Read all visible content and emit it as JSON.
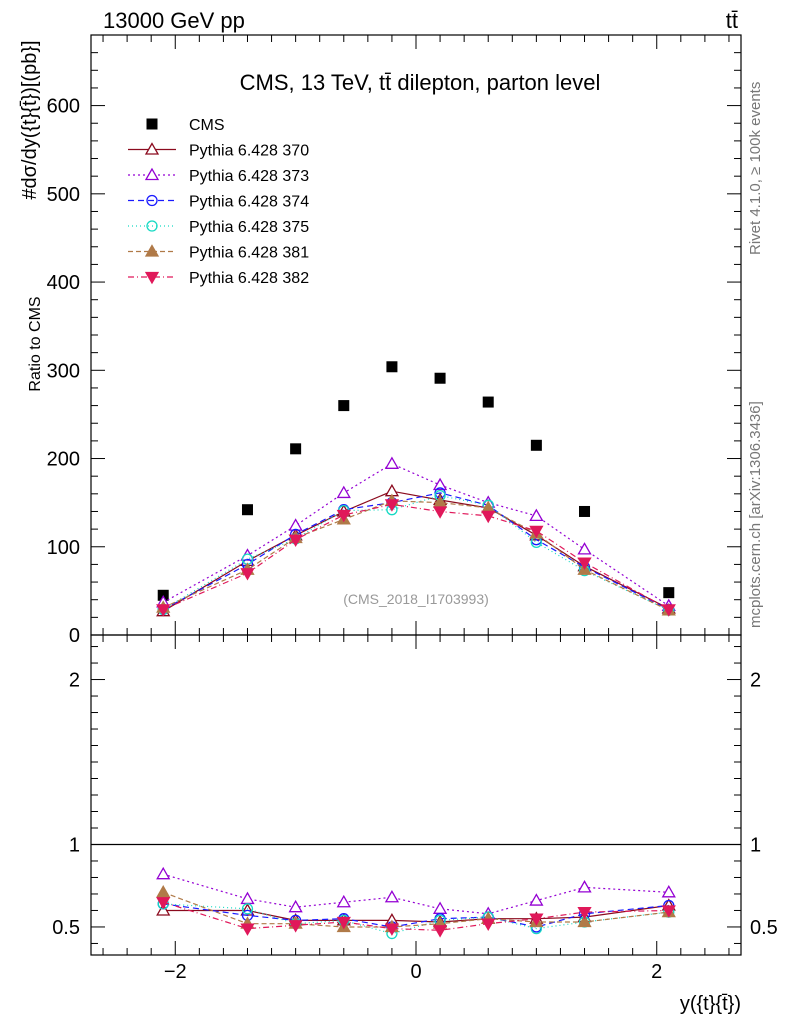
{
  "header": {
    "energy_label": "13000 GeV pp",
    "process_label": "tt̄"
  },
  "side_labels": {
    "rivet": "Rivet 4.1.0, ≥ 100k events",
    "mcplots": "mcplots.cern.ch [arXiv:1306.3436]"
  },
  "analysis_id": "(CMS_2018_I1703993)",
  "colors": {
    "CMS": "#000000",
    "p370": "#8b0a1e",
    "p373": "#9400d3",
    "p374": "#1a1aff",
    "p375": "#15d9c3",
    "p381": "#b07a48",
    "p382": "#e0185a"
  },
  "chart_data": [
    {
      "type": "scatter",
      "title": "CMS, 13 TeV, tt̄ dilepton, parton level",
      "ylabel": "#dσ/dy({t}{t̄})[(pb}]",
      "xlabel": "",
      "xlim": [
        -2.7,
        2.7
      ],
      "ylim": [
        0,
        680
      ],
      "yticks": [
        0,
        100,
        200,
        300,
        400,
        500,
        600
      ],
      "x": [
        -2.1,
        -1.4,
        -1.0,
        -0.6,
        -0.2,
        0.2,
        0.6,
        1.0,
        1.4,
        2.1
      ],
      "series": [
        {
          "name": "CMS",
          "key": "CMS",
          "marker": "square",
          "dash": "",
          "values": [
            45,
            142,
            211,
            260,
            304,
            291,
            264,
            215,
            140,
            48
          ]
        },
        {
          "name": "Pythia 6.428 370",
          "key": "p370",
          "marker": "triangle-open",
          "dash": "",
          "values": [
            27,
            84,
            113,
            140,
            163,
            153,
            144,
            113,
            78,
            30
          ]
        },
        {
          "name": "Pythia 6.428 373",
          "key": "p373",
          "marker": "triangle-open",
          "dash": "2,3",
          "values": [
            37,
            90,
            124,
            161,
            194,
            170,
            150,
            135,
            97,
            33
          ]
        },
        {
          "name": "Pythia 6.428 374",
          "key": "p374",
          "marker": "circle-open",
          "dash": "6,4",
          "values": [
            29,
            80,
            114,
            142,
            150,
            161,
            147,
            108,
            77,
            29
          ]
        },
        {
          "name": "Pythia 6.428 375",
          "key": "p375",
          "marker": "circle-open",
          "dash": "1,3",
          "values": [
            29,
            86,
            109,
            141,
            142,
            158,
            147,
            105,
            73,
            28
          ]
        },
        {
          "name": "Pythia 6.428 381",
          "key": "p381",
          "marker": "triangle",
          "dash": "5,3",
          "values": [
            31,
            74,
            110,
            131,
            152,
            150,
            144,
            115,
            74,
            28
          ]
        },
        {
          "name": "Pythia 6.428 382",
          "key": "p382",
          "marker": "triangle-down",
          "dash": "6,3,1,3",
          "values": [
            29,
            70,
            108,
            136,
            148,
            140,
            135,
            118,
            82,
            29
          ]
        }
      ]
    },
    {
      "type": "scatter",
      "title": "",
      "ylabel": "Ratio to CMS",
      "xlabel": "y({t}{t̄})",
      "xlim": [
        -2.7,
        2.7
      ],
      "ylim": [
        0.33,
        2.27
      ],
      "yticks": [
        0.5,
        1,
        2
      ],
      "xticks": [
        -2,
        0,
        2
      ],
      "x": [
        -2.1,
        -1.4,
        -1.0,
        -0.6,
        -0.2,
        0.2,
        0.6,
        1.0,
        1.4,
        2.1
      ],
      "series": [
        {
          "name": "Pythia 6.428 370",
          "key": "p370",
          "marker": "triangle-open",
          "dash": "",
          "values": [
            0.6,
            0.6,
            0.54,
            0.54,
            0.54,
            0.53,
            0.55,
            0.55,
            0.56,
            0.63
          ]
        },
        {
          "name": "Pythia 6.428 373",
          "key": "p373",
          "marker": "triangle-open",
          "dash": "2,3",
          "values": [
            0.82,
            0.67,
            0.62,
            0.65,
            0.68,
            0.61,
            0.58,
            0.66,
            0.74,
            0.71
          ]
        },
        {
          "name": "Pythia 6.428 374",
          "key": "p374",
          "marker": "circle-open",
          "dash": "6,4",
          "values": [
            0.64,
            0.57,
            0.54,
            0.55,
            0.5,
            0.55,
            0.56,
            0.5,
            0.58,
            0.63
          ]
        },
        {
          "name": "Pythia 6.428 375",
          "key": "p375",
          "marker": "circle-open",
          "dash": "1,3",
          "values": [
            0.64,
            0.61,
            0.52,
            0.54,
            0.46,
            0.54,
            0.56,
            0.49,
            0.53,
            0.59
          ]
        },
        {
          "name": "Pythia 6.428 381",
          "key": "p381",
          "marker": "triangle",
          "dash": "5,3",
          "values": [
            0.71,
            0.52,
            0.52,
            0.5,
            0.5,
            0.52,
            0.55,
            0.53,
            0.53,
            0.59
          ]
        },
        {
          "name": "Pythia 6.428 382",
          "key": "p382",
          "marker": "triangle-down",
          "dash": "6,3,1,3",
          "values": [
            0.65,
            0.49,
            0.51,
            0.53,
            0.49,
            0.48,
            0.52,
            0.55,
            0.59,
            0.6
          ]
        }
      ]
    }
  ]
}
